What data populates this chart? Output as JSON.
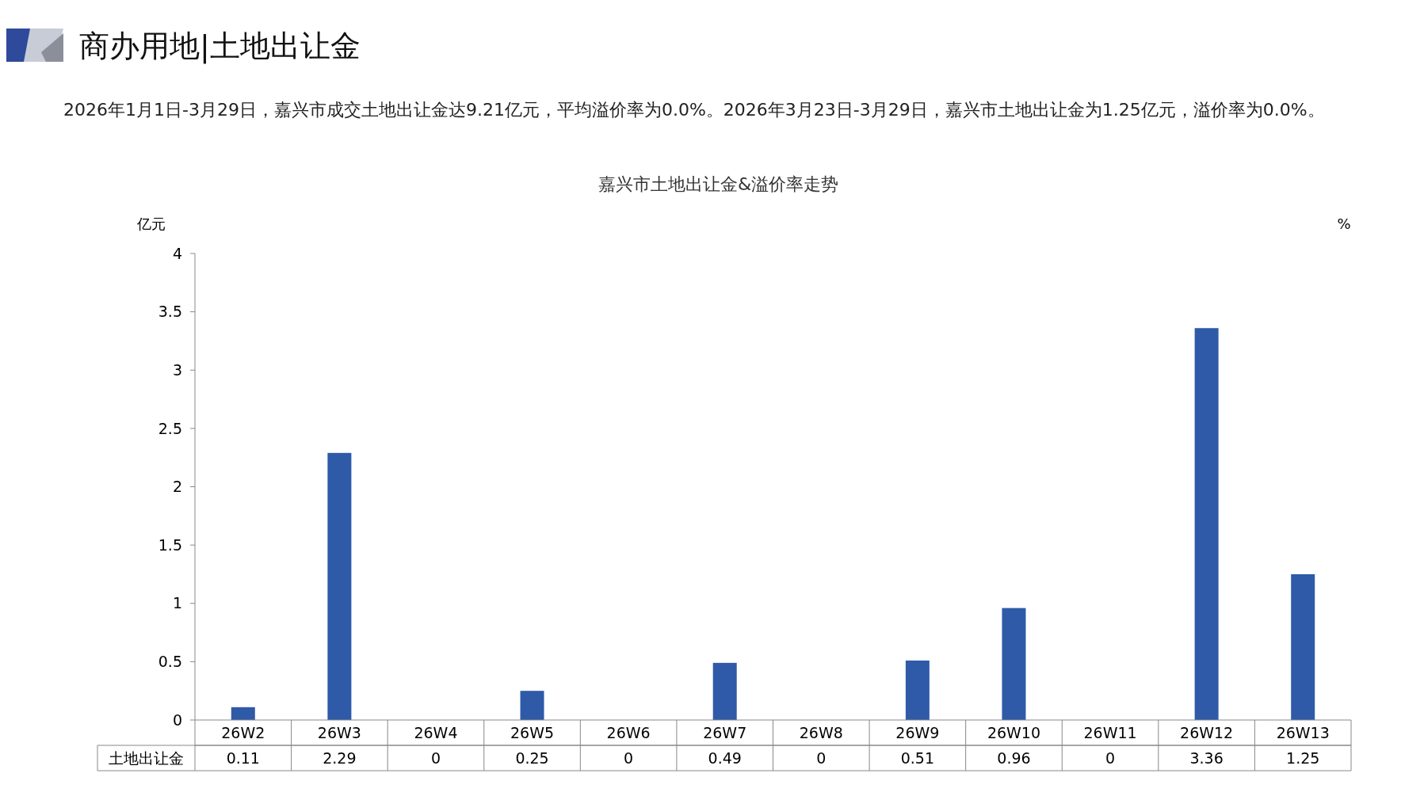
{
  "chart_data": {
    "type": "bar",
    "title": "嘉兴市土地出让金&溢价率走势",
    "subtitle": "商办用地|土地出让金",
    "annotations": [
      "2026年1月1日-3月29日，嘉兴市成交土地出让金达9.21亿元，平均溢价率为0.0%。2026年3月23日-3月29日，嘉兴市土地出让金为1.25亿元，溢价率为0.0%。"
    ],
    "ylabel": "亿元",
    "y2label": "%",
    "categories": [
      "26W2",
      "26W3",
      "26W4",
      "26W5",
      "26W6",
      "26W7",
      "26W8",
      "26W9",
      "26W10",
      "26W11",
      "26W12",
      "26W13"
    ],
    "series": [
      {
        "name": "土地出让金",
        "color": "#2f5aa8",
        "values": [
          0.11,
          2.29,
          0,
          0.25,
          0,
          0.49,
          0,
          0.51,
          0.96,
          0,
          3.36,
          1.25
        ]
      }
    ],
    "ylim": [
      0,
      4
    ],
    "yticks": [
      0,
      0.5,
      1,
      1.5,
      2,
      2.5,
      3,
      3.5,
      4
    ],
    "grid": false,
    "data_labels": true
  }
}
